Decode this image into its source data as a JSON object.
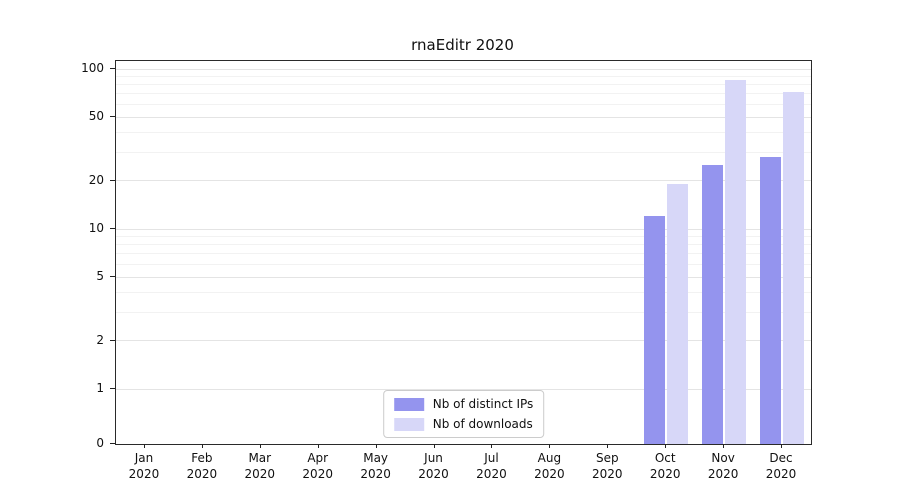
{
  "chart_data": {
    "type": "bar",
    "title": "rnaEditr 2020",
    "categories": [
      "Jan 2020",
      "Feb 2020",
      "Mar 2020",
      "Apr 2020",
      "May 2020",
      "Jun 2020",
      "Jul 2020",
      "Aug 2020",
      "Sep 2020",
      "Oct 2020",
      "Nov 2020",
      "Dec 2020"
    ],
    "series": [
      {
        "name": "Nb of distinct IPs",
        "color": "#9494ee",
        "values": [
          0,
          0,
          0,
          0,
          0,
          0,
          0,
          0,
          0,
          12,
          25,
          28
        ]
      },
      {
        "name": "Nb of downloads",
        "color": "#d7d7f8",
        "values": [
          0,
          0,
          0,
          0,
          0,
          0,
          0,
          0,
          0,
          19,
          85,
          72
        ]
      }
    ],
    "yscale": "symlog",
    "ylim": [
      0,
      100
    ],
    "yticks": [
      0,
      1,
      2,
      5,
      10,
      20,
      50,
      100
    ],
    "minor_gridlines": [
      3,
      4,
      6,
      7,
      8,
      9,
      30,
      40,
      60,
      70,
      80,
      90
    ],
    "grid": "horizontal",
    "legend_position": "lower-center-inside",
    "colors": {
      "major_grid": "#e4e4e4",
      "minor_grid": "#f2f2f2",
      "axis": "#2a2a2a"
    }
  }
}
